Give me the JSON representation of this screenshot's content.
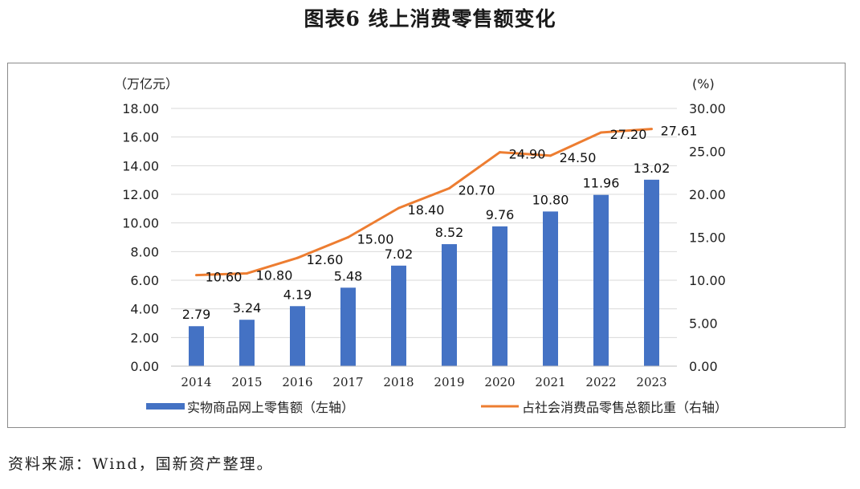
{
  "title": "图表6 线上消费零售额变化",
  "source": "资料来源：Wind，国新资产整理。",
  "colors": {
    "bar": "#4472C4",
    "line": "#ED7D31",
    "grid": "#d9d9d9",
    "frame": "#8a8a8a"
  },
  "chart_data": {
    "type": "bar+line",
    "categories": [
      "2014",
      "2015",
      "2016",
      "2017",
      "2018",
      "2019",
      "2020",
      "2021",
      "2022",
      "2023"
    ],
    "series": [
      {
        "name": "实物商品网上零售额（左轴）",
        "type": "bar",
        "axis": "left",
        "values": [
          2.79,
          3.24,
          4.19,
          5.48,
          7.02,
          8.52,
          9.76,
          10.8,
          11.96,
          13.02
        ],
        "labels": [
          "2.79",
          "3.24",
          "4.19",
          "5.48",
          "7.02",
          "8.52",
          "9.76",
          "10.80",
          "11.96",
          "13.02"
        ]
      },
      {
        "name": "占社会消费品零售总额比重（右轴）",
        "type": "line",
        "axis": "right",
        "values": [
          10.6,
          10.8,
          12.6,
          15.0,
          18.4,
          20.7,
          24.9,
          24.5,
          27.2,
          27.61
        ],
        "labels": [
          "10.60",
          "10.80",
          "12.60",
          "15.00",
          "18.40",
          "20.70",
          "24.90",
          "24.50",
          "27.20",
          "27.61"
        ]
      }
    ],
    "y_left": {
      "unit": "（万亿元）",
      "range": [
        0,
        18
      ],
      "ticks": [
        "0.00",
        "2.00",
        "4.00",
        "6.00",
        "8.00",
        "10.00",
        "12.00",
        "14.00",
        "16.00",
        "18.00"
      ]
    },
    "y_right": {
      "unit": "(%)",
      "range": [
        0,
        30
      ],
      "ticks": [
        "0.00",
        "5.00",
        "10.00",
        "15.00",
        "20.00",
        "25.00",
        "30.00"
      ]
    },
    "grid": true,
    "legend_position": "bottom"
  }
}
